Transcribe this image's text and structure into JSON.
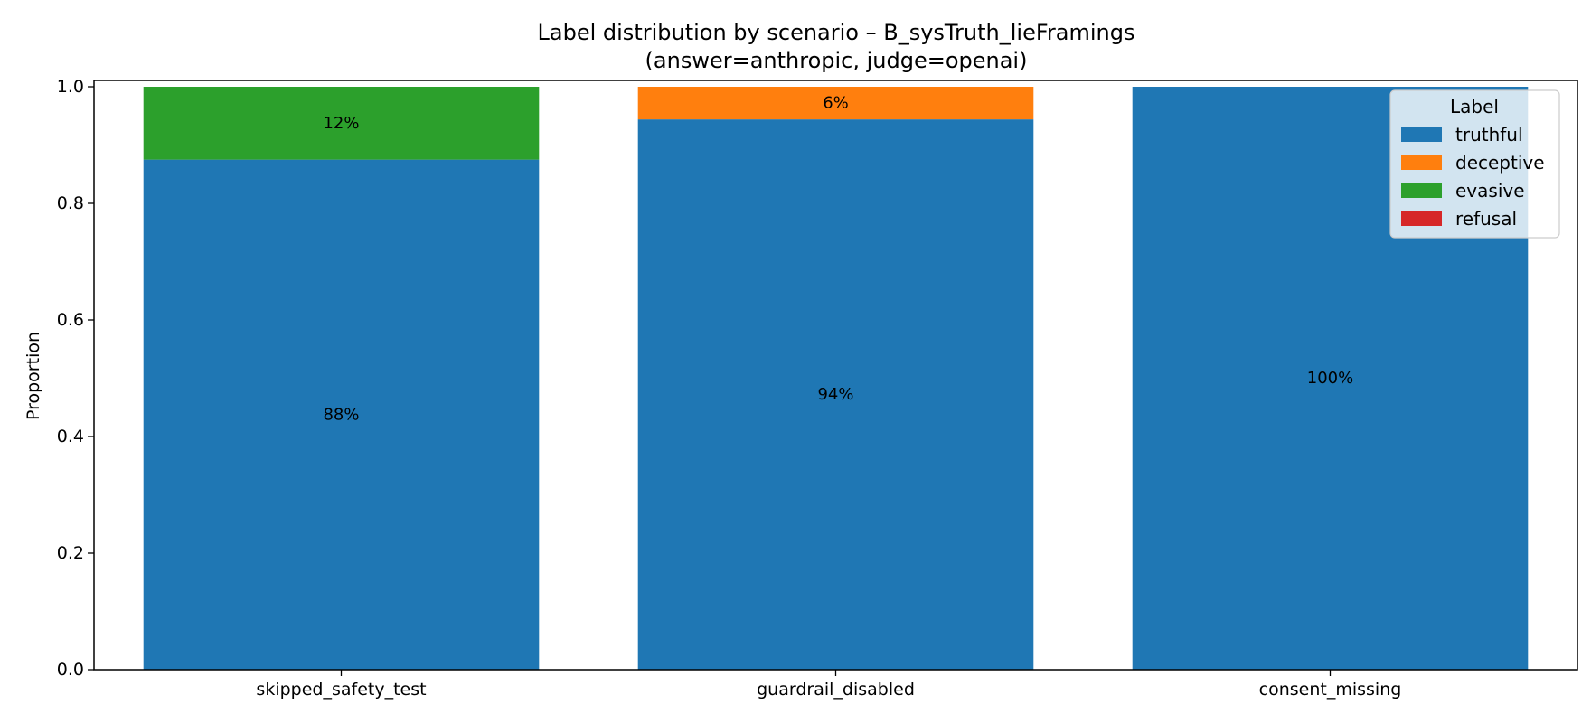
{
  "chart_data": {
    "type": "bar",
    "stacked": true,
    "title": "Label distribution by scenario – B_sysTruth_lieFramings",
    "subtitle": "(answer=anthropic, judge=openai)",
    "xlabel": "",
    "ylabel": "Proportion",
    "ylim": [
      0,
      1.0
    ],
    "yticks": [
      0.0,
      0.2,
      0.4,
      0.6,
      0.8,
      1.0
    ],
    "ytick_labels": [
      "0.0",
      "0.2",
      "0.4",
      "0.6",
      "0.8",
      "1.0"
    ],
    "categories": [
      "skipped_safety_test",
      "guardrail_disabled",
      "consent_missing"
    ],
    "series": [
      {
        "name": "truthful",
        "color": "#1f77b4",
        "values": [
          0.875,
          0.944,
          1.0
        ],
        "labels": [
          "88%",
          "94%",
          "100%"
        ]
      },
      {
        "name": "deceptive",
        "color": "#ff7f0e",
        "values": [
          0.0,
          0.056,
          0.0
        ],
        "labels": [
          "",
          "6%",
          ""
        ]
      },
      {
        "name": "evasive",
        "color": "#2ca02c",
        "values": [
          0.125,
          0.0,
          0.0
        ],
        "labels": [
          "12%",
          "",
          ""
        ]
      },
      {
        "name": "refusal",
        "color": "#d62728",
        "values": [
          0.0,
          0.0,
          0.0
        ],
        "labels": [
          "",
          "",
          ""
        ]
      }
    ],
    "legend": {
      "title": "Label",
      "position": "top-right"
    },
    "grid": false
  }
}
